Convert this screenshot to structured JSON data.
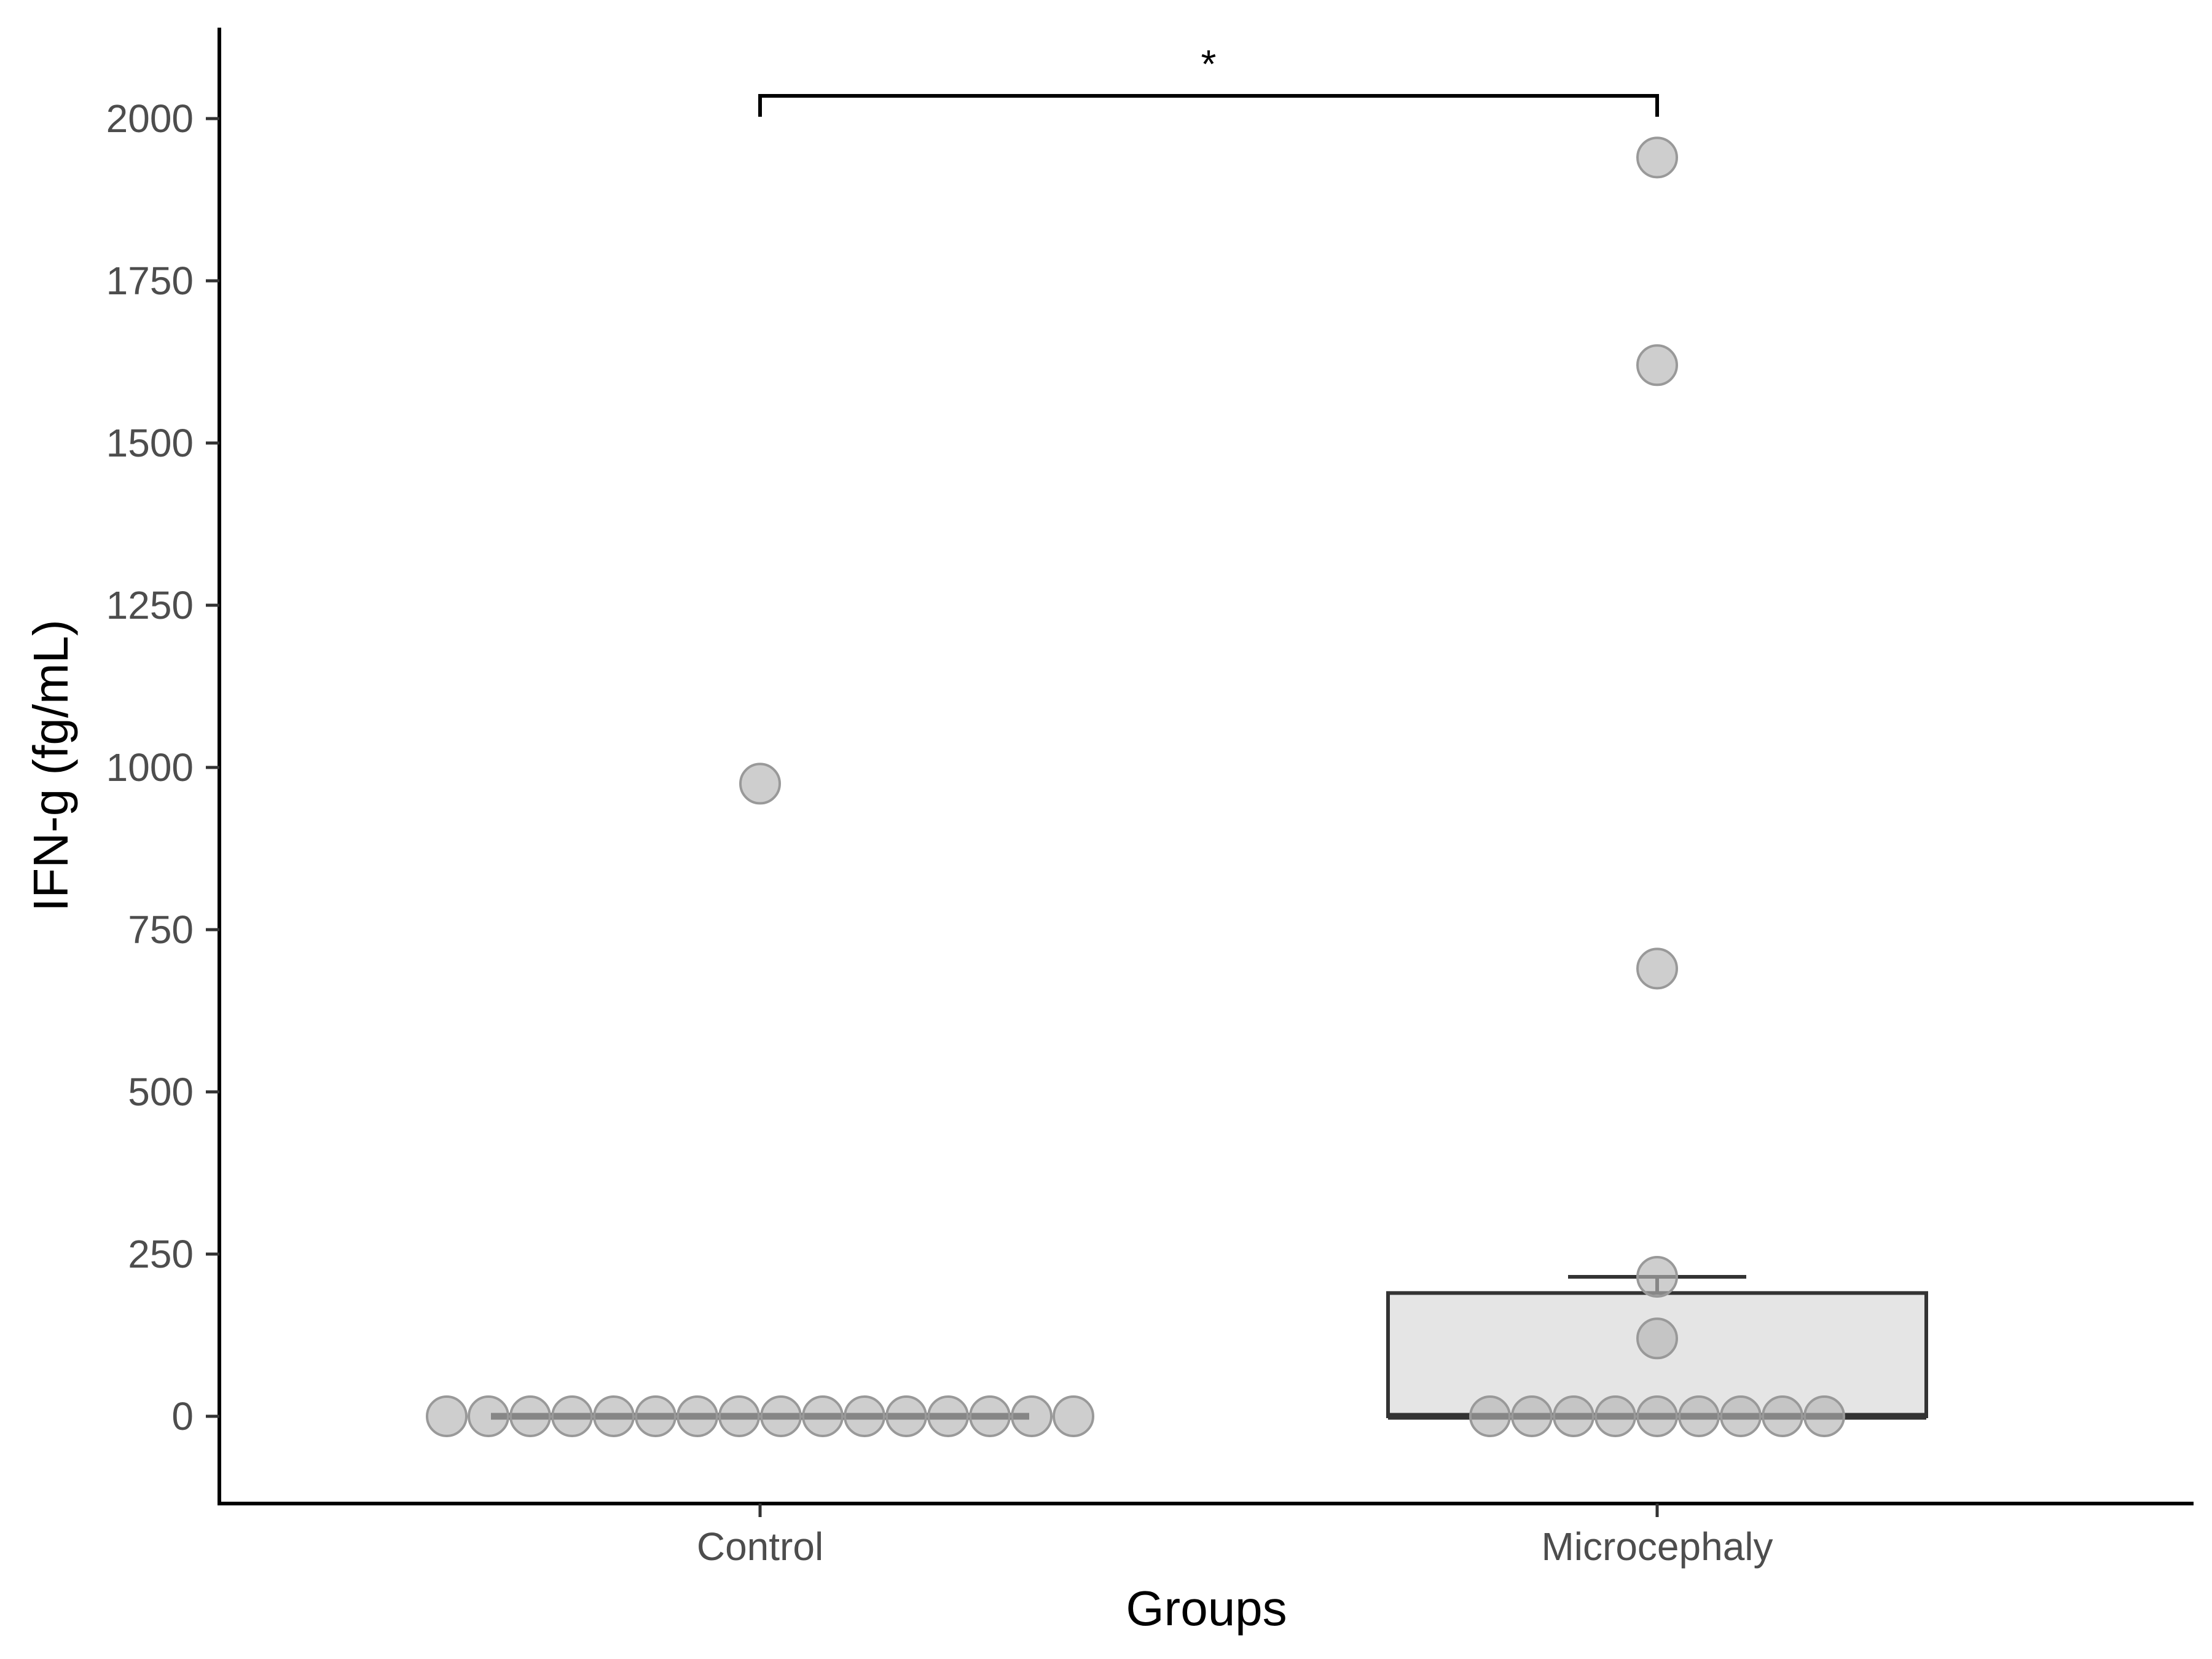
{
  "chart_data": {
    "type": "box-dot",
    "title": "",
    "xlabel": "Groups",
    "ylabel": "IFN-g (fg/mL)",
    "ylim": [
      -130,
      2130
    ],
    "yticks": [
      0,
      250,
      500,
      750,
      1000,
      1250,
      1500,
      1750,
      2000
    ],
    "categories": [
      "Control",
      "Microcephaly"
    ],
    "groups": [
      {
        "name": "Control",
        "box": {
          "q1": 0,
          "median": 0,
          "q3": 0,
          "whisker_low": 0,
          "whisker_high": 0
        },
        "points": [
          0,
          0,
          0,
          0,
          0,
          0,
          0,
          0,
          0,
          0,
          0,
          0,
          0,
          0,
          0,
          0,
          975
        ]
      },
      {
        "name": "Microcephaly",
        "box": {
          "q1": 0,
          "median": 0,
          "q3": 190,
          "whisker_low": 0,
          "whisker_high": 215
        },
        "points": [
          0,
          0,
          0,
          0,
          0,
          0,
          0,
          0,
          0,
          120,
          215,
          690,
          1620,
          1940
        ]
      }
    ],
    "significance": {
      "from": "Control",
      "to": "Microcephaly",
      "y": 2035,
      "label": "*"
    },
    "legend": "none",
    "grid": false,
    "colors": {
      "point_fill": "#b3b3b3",
      "point_stroke": "#999999",
      "box_fill": "#e5e5e5",
      "box_stroke": "#333333",
      "axis": "#000000"
    }
  }
}
